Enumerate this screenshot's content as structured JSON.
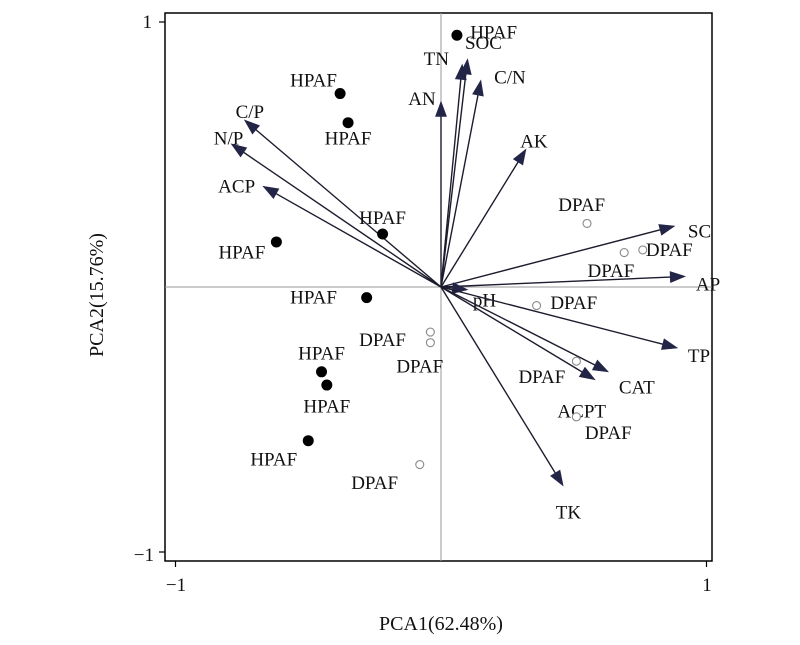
{
  "chart_data": {
    "type": "scatter",
    "xlabel": "PCA1(62.48%)",
    "ylabel": "PCA2(15.76%)",
    "xlim": [
      -1,
      1
    ],
    "ylim": [
      -1,
      1
    ],
    "xticks": [
      "−1",
      "1"
    ],
    "yticks": [
      "1",
      "−1"
    ],
    "grid": false,
    "zero_lines": true,
    "series": [
      {
        "name": "HPAF",
        "marker": "filled-circle",
        "points": [
          {
            "x": 0.06,
            "y": 0.95,
            "label": "HPAF"
          },
          {
            "x": -0.38,
            "y": 0.73,
            "label": "HPAF"
          },
          {
            "x": -0.35,
            "y": 0.62,
            "label": "HPAF"
          },
          {
            "x": -0.22,
            "y": 0.2,
            "label": "HPAF"
          },
          {
            "x": -0.62,
            "y": 0.17,
            "label": "HPAF"
          },
          {
            "x": -0.28,
            "y": -0.04,
            "label": "HPAF"
          },
          {
            "x": -0.45,
            "y": -0.32,
            "label": "HPAF"
          },
          {
            "x": -0.43,
            "y": -0.37,
            "label": "HPAF"
          },
          {
            "x": -0.5,
            "y": -0.58,
            "label": "HPAF"
          }
        ]
      },
      {
        "name": "DPAF",
        "marker": "open-circle",
        "points": [
          {
            "x": 0.55,
            "y": 0.24,
            "label": "DPAF"
          },
          {
            "x": 0.76,
            "y": 0.14,
            "label": "DPAF"
          },
          {
            "x": 0.69,
            "y": 0.13,
            "label": "DPAF"
          },
          {
            "x": 0.36,
            "y": -0.07,
            "label": "DPAF"
          },
          {
            "x": -0.04,
            "y": -0.17,
            "label": "DPAF"
          },
          {
            "x": -0.04,
            "y": -0.21,
            "label": "DPAF"
          },
          {
            "x": 0.51,
            "y": -0.28,
            "label": "DPAF"
          },
          {
            "x": 0.51,
            "y": -0.49,
            "label": "DPAF"
          },
          {
            "x": -0.08,
            "y": -0.67,
            "label": "DPAF"
          }
        ]
      }
    ],
    "vectors": [
      {
        "name": "SOC",
        "x": 0.1,
        "y": 0.86
      },
      {
        "name": "TN",
        "x": 0.08,
        "y": 0.84
      },
      {
        "name": "C/N",
        "x": 0.15,
        "y": 0.78
      },
      {
        "name": "AN",
        "x": 0.0,
        "y": 0.7
      },
      {
        "name": "AK",
        "x": 0.32,
        "y": 0.52
      },
      {
        "name": "C/P",
        "x": -0.74,
        "y": 0.63
      },
      {
        "name": "N/P",
        "x": -0.79,
        "y": 0.54
      },
      {
        "name": "ACP",
        "x": -0.67,
        "y": 0.38
      },
      {
        "name": "SC",
        "x": 0.88,
        "y": 0.23
      },
      {
        "name": "AP",
        "x": 0.92,
        "y": 0.04
      },
      {
        "name": "pH",
        "x": 0.1,
        "y": -0.01
      },
      {
        "name": "TP",
        "x": 0.89,
        "y": -0.23
      },
      {
        "name": "CAT",
        "x": 0.63,
        "y": -0.32
      },
      {
        "name": "ACPT",
        "x": 0.58,
        "y": -0.35
      },
      {
        "name": "TK",
        "x": 0.46,
        "y": -0.75
      }
    ]
  }
}
